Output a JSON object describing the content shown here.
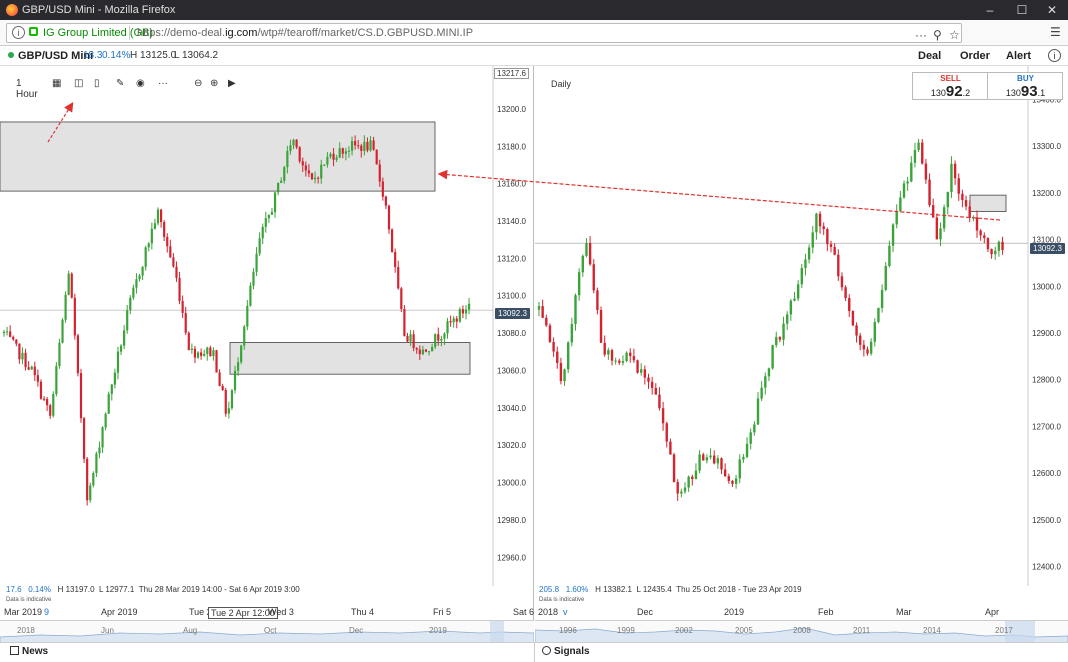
{
  "browser": {
    "title": "GBP/USD Mini - Mozilla Firefox",
    "org": "IG Group Limited (GB)",
    "url_prefix": "https://demo-deal.",
    "url_domain": "ig.com",
    "url_path": "/wtp#/tearoff/market/CS.D.GBPUSD.MINI.IP",
    "icon_names": [
      "firefox-icon",
      "info-icon",
      "lock-icon",
      "dots-icon",
      "pocket-icon",
      "star-icon",
      "menu-icon"
    ]
  },
  "header": {
    "instrument": "GBP/USD Mini",
    "change": "18.3",
    "change_pct": "0.14%",
    "high": "H 13125.0",
    "low": "L 13064.2",
    "menu": [
      "Deal",
      "Order",
      "Alert"
    ]
  },
  "quote": {
    "sell_label": "SELL",
    "sell_prefix": "130",
    "sell_big": "92",
    "sell_small": ".2",
    "buy_label": "BUY",
    "buy_prefix": "130",
    "buy_big": "93",
    "buy_small": ".1",
    "sell_color": "#e0312f",
    "buy_color": "#2275c9"
  },
  "left_chart": {
    "timeframe": "1 Hour",
    "axis_top_value": "13217.6",
    "current_price": "13092.3",
    "y_ticks": [
      "13200.0",
      "13180.0",
      "13160.0",
      "13140.0",
      "13120.0",
      "13100.0",
      "13080.0",
      "13060.0",
      "13040.0",
      "13020.0",
      "13000.0",
      "12980.0",
      "12960.0"
    ],
    "stats_change": "17.6",
    "stats_pct": "0.14%",
    "stats_high": "H 13197.0",
    "stats_low": "L 12977.1",
    "stats_range": "Thu 28 Mar 2019 14:00 - Sat 6 Apr 2019 3:00",
    "indicative": "Data is indicative",
    "dates": [
      "Mar 2019",
      "9",
      "Apr 2019",
      "Tue 2",
      "Tue 2 Apr 12:00",
      "Wed 3",
      "Thu 4",
      "Fri 5",
      "Sat 6"
    ],
    "navigator": [
      "2018",
      "Jun",
      "Aug",
      "Oct",
      "Dec",
      "2019"
    ]
  },
  "right_chart": {
    "timeframe": "Daily",
    "current_price": "13092.3",
    "y_ticks": [
      "13400.0",
      "13300.0",
      "13200.0",
      "13100.0",
      "13000.0",
      "12900.0",
      "12800.0",
      "12700.0",
      "12600.0",
      "12500.0",
      "12400.0"
    ],
    "stats_change": "205.8",
    "stats_pct": "1.60%",
    "stats_high": "H 13382.1",
    "stats_low": "L 12435.4",
    "stats_range": "Thu 25 Oct 2018 - Tue 23 Apr 2019",
    "indicative": "Data is indicative",
    "dates": [
      "2018",
      "v",
      "Dec",
      "2019",
      "Feb",
      "Mar",
      "Apr"
    ],
    "navigator": [
      "1996",
      "1999",
      "2002",
      "2005",
      "2008",
      "2011",
      "2014",
      "2017"
    ]
  },
  "bottom": {
    "news": "News",
    "signals": "Signals"
  },
  "chart_data": [
    {
      "type": "candlestick",
      "title": "",
      "timeframe": "1 Hour",
      "ylim": [
        12950,
        13217.6
      ],
      "zones": [
        [
          13156,
          13193
        ],
        [
          13058,
          13075
        ]
      ],
      "last": 13092.3
    },
    {
      "type": "candlestick",
      "title": "",
      "timeframe": "Daily",
      "ylim": [
        12380,
        13450
      ],
      "zones": [
        [
          13160,
          13195
        ]
      ],
      "last": 13092.3
    }
  ]
}
